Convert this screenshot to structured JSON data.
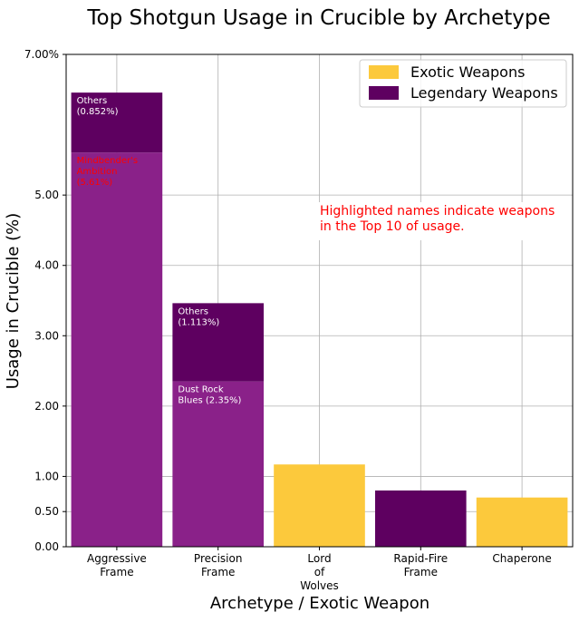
{
  "chart_data": {
    "type": "bar",
    "stacked": true,
    "title": "Top Shotgun Usage in Crucible by Archetype",
    "xlabel": "Archetype / Exotic Weapon",
    "ylabel": "Usage in Crucible (%)",
    "ylim": [
      0,
      7
    ],
    "yticks": [
      0,
      0.5,
      1,
      2,
      3,
      4,
      5,
      7
    ],
    "ytick_labels": [
      "0.00",
      "0.50",
      "1.00",
      "2.00",
      "3.00",
      "4.00",
      "5.00",
      "7.00%"
    ],
    "grid": true,
    "legend_position": "top-right",
    "categories": [
      "Aggressive\nFrame",
      "Precision\nFrame",
      "Lord\nof\nWolves",
      "Rapid-Fire\nFrame",
      "Chaperone"
    ],
    "colors": {
      "exotic": "#fcc93c",
      "legendary": "#5e0060",
      "legendary_main": "#8a2189",
      "highlight_text": "#ff0000",
      "label_text": "#ffffff"
    },
    "legend": [
      {
        "label": "Exotic Weapons",
        "color": "#fcc93c"
      },
      {
        "label": "Legendary Weapons",
        "color": "#5e0060"
      }
    ],
    "bars": [
      {
        "category_index": 0,
        "segments": [
          {
            "value": 5.605,
            "color": "#8a2189",
            "label_lines": [
              "Mindbender's",
              "Ambition",
              "(5.61%)"
            ],
            "label_color": "#ff0000"
          },
          {
            "value": 0.852,
            "color": "#5e0060",
            "label_lines": [
              "Others",
              "(0.852%)"
            ],
            "label_color": "#ffffff"
          }
        ]
      },
      {
        "category_index": 1,
        "segments": [
          {
            "value": 2.35,
            "color": "#8a2189",
            "label_lines": [
              "Dust Rock",
              "Blues (2.35%)"
            ],
            "label_color": "#ffffff"
          },
          {
            "value": 1.113,
            "color": "#5e0060",
            "label_lines": [
              "Others",
              "(1.113%)"
            ],
            "label_color": "#ffffff"
          }
        ]
      },
      {
        "category_index": 2,
        "segments": [
          {
            "value": 1.17,
            "color": "#fcc93c",
            "label_lines": [],
            "label_color": "#ffffff"
          }
        ]
      },
      {
        "category_index": 3,
        "segments": [
          {
            "value": 0.8,
            "color": "#5e0060",
            "label_lines": [],
            "label_color": "#ffffff"
          }
        ]
      },
      {
        "category_index": 4,
        "segments": [
          {
            "value": 0.7,
            "color": "#fcc93c",
            "label_lines": [],
            "label_color": "#ffffff"
          }
        ]
      }
    ],
    "annotation": {
      "lines": [
        "Highlighted names indicate weapons",
        "in the Top 10 of usage."
      ],
      "color": "#ff0000"
    }
  }
}
